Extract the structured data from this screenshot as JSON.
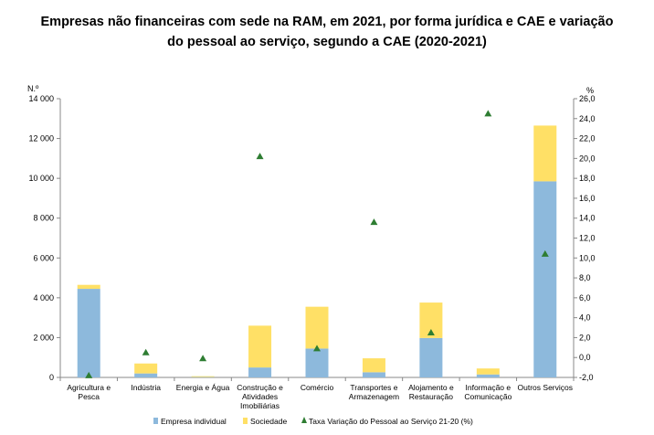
{
  "title": {
    "line1": "Empresas não financeiras com sede na RAM, em 2021, por forma jurídica e CAE e variação",
    "line2": "do pessoal ao serviço, segundo a CAE (2020-2021)"
  },
  "chart_data": {
    "type": "bar",
    "stacked": true,
    "title": "Empresas não financeiras com sede na RAM, em 2021, por forma jurídica e CAE e variação do pessoal ao serviço, segundo a CAE (2020-2021)",
    "ylabel": "N.º",
    "y2label": "%",
    "ylim": [
      0,
      14000
    ],
    "y2lim": [
      -2.0,
      26.0
    ],
    "yticks": [
      "0",
      "2 000",
      "4 000",
      "6 000",
      "8 000",
      "10 000",
      "12 000",
      "14 000"
    ],
    "y2ticks": [
      "-2,0",
      "0,0",
      "2,0",
      "4,0",
      "6,0",
      "8,0",
      "10,0",
      "12,0",
      "14,0",
      "16,0",
      "18,0",
      "20,0",
      "22,0",
      "24,0",
      "26,0"
    ],
    "grid": false,
    "legend_position": "bottom",
    "categories": [
      [
        "Agricultura e",
        "Pesca"
      ],
      [
        "Indústria"
      ],
      [
        "Energia e Água"
      ],
      [
        "Construção e",
        "Atividades",
        "Imobiliárias"
      ],
      [
        "Comércio"
      ],
      [
        "Transportes e",
        "Armazenagem"
      ],
      [
        "Alojamento e",
        "Restauração"
      ],
      [
        "Informação e",
        "Comunicação"
      ],
      [
        "Outros Serviços"
      ]
    ],
    "series": [
      {
        "name": "Empresa individual",
        "axis": "left",
        "kind": "bar",
        "color": "#8db9dc",
        "values": [
          4450,
          200,
          20,
          500,
          1450,
          260,
          1980,
          150,
          9850
        ]
      },
      {
        "name": "Sociedade",
        "axis": "left",
        "kind": "bar",
        "color": "#ffe066",
        "values": [
          200,
          500,
          40,
          2100,
          2100,
          700,
          1780,
          300,
          2800
        ]
      },
      {
        "name": "Taxa Variação do Pessoal ao Serviço 21-20 (%)",
        "axis": "right",
        "kind": "marker",
        "color": "#2e7d32",
        "values": [
          -1.8,
          0.5,
          -0.1,
          20.2,
          0.9,
          13.6,
          2.5,
          24.5,
          10.4
        ]
      }
    ]
  }
}
